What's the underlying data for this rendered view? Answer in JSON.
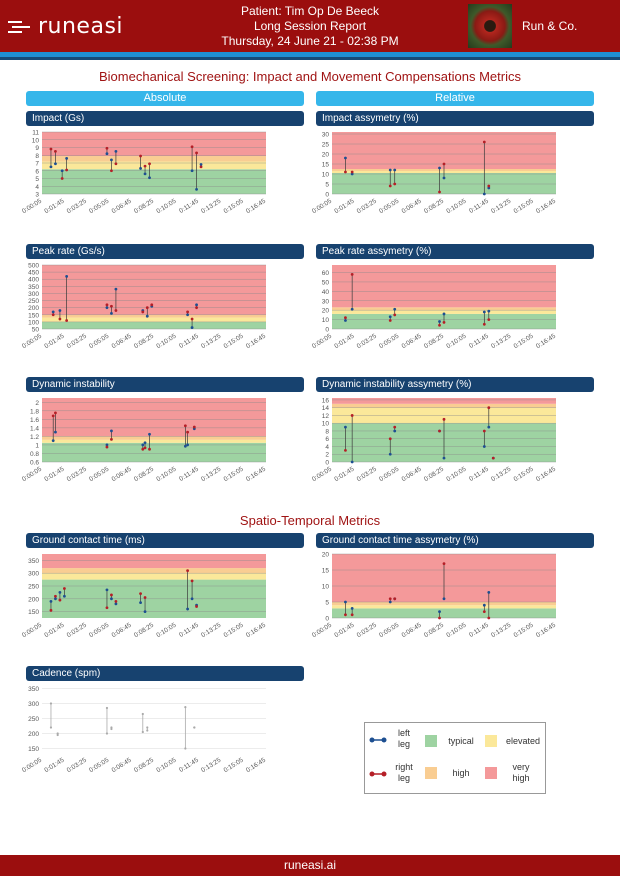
{
  "header": {
    "brand": "runeasi",
    "patient": "Patient: Tim Op De Beeck",
    "report": "Long Session Report",
    "datetime": "Thursday, 24 June 21 - 02:38 PM",
    "company": "Run & Co."
  },
  "sections": {
    "biomech": "Biomechanical Screening: Impact and Movement Compensations Metrics",
    "spatio": "Spatio-Temporal Metrics"
  },
  "columns": {
    "absolute": "Absolute",
    "relative": "Relative"
  },
  "charts": {
    "impact": {
      "title": "Impact (Gs)"
    },
    "impact_asym": {
      "title": "Impact assymetry (%)"
    },
    "peak": {
      "title": "Peak rate (Gs/s)"
    },
    "peak_asym": {
      "title": "Peak rate assymetry (%)"
    },
    "dyn": {
      "title": "Dynamic instability"
    },
    "dyn_asym": {
      "title": "Dynamic instability assymetry (%)"
    },
    "gct": {
      "title": "Ground contact time (ms)"
    },
    "gct_asym": {
      "title": "Ground contact time assymetry (%)"
    },
    "cad": {
      "title": "Cadence (spm)"
    }
  },
  "legend": {
    "left": "left leg",
    "right": "right leg",
    "typical": "typical",
    "elevated": "elevated",
    "high": "high",
    "very_high": "very high"
  },
  "colors": {
    "typical": "#9ed3a2",
    "elevated": "#fbe89a",
    "high": "#f9cd92",
    "very_high": "#f4999a",
    "left": "#1d4f91",
    "right": "#b51f27",
    "stem": "#3a3a3a",
    "cadence": "#aaaaaa",
    "header": "#9b0e0e",
    "accent": "#35b6ea",
    "navy": "#17426f"
  },
  "footer": {
    "url": "runeasi.ai"
  },
  "chart_data": [
    {
      "id": "impact",
      "type": "scatter",
      "title": "Impact (Gs)",
      "x": [
        "0:00:05",
        "0:01:45",
        "0:03:25",
        "0:05:05",
        "0:06:45",
        "0:08:25",
        "0:10:05",
        "0:11:45",
        "0:13:25",
        "0:15:05",
        "0:16:45"
      ],
      "ylim": [
        3,
        11
      ],
      "yticks": [
        3,
        4,
        5,
        6,
        7,
        8,
        9,
        10,
        11
      ],
      "zones": [
        {
          "from": 3,
          "to": 6.2,
          "level": "typical"
        },
        {
          "from": 6.2,
          "to": 7.2,
          "level": "elevated"
        },
        {
          "from": 7.2,
          "to": 7.9,
          "level": "high"
        },
        {
          "from": 7.9,
          "to": 11,
          "level": "very_high"
        }
      ],
      "samples": [
        {
          "t": 0.4,
          "left": 6.5,
          "right": 8.8
        },
        {
          "t": 0.6,
          "left": 6.9,
          "right": 8.5
        },
        {
          "t": 0.9,
          "left": 6.0,
          "right": 5.0
        },
        {
          "t": 1.1,
          "left": 7.6,
          "right": 6.1
        },
        {
          "t": 2.9,
          "left": 8.2,
          "right": 8.9
        },
        {
          "t": 3.1,
          "left": 7.4,
          "right": 6.0
        },
        {
          "t": 3.3,
          "left": 8.5,
          "right": 6.9
        },
        {
          "t": 4.4,
          "left": 6.3,
          "right": 7.9
        },
        {
          "t": 4.6,
          "left": 5.6,
          "right": 6.6
        },
        {
          "t": 4.8,
          "left": 5.1,
          "right": 6.9
        },
        {
          "t": 6.7,
          "left": 6.0,
          "right": 9.1
        },
        {
          "t": 6.9,
          "left": 3.6,
          "right": 8.3
        },
        {
          "t": 7.1,
          "left": 6.8,
          "right": 6.5
        }
      ]
    },
    {
      "id": "impact_asym",
      "type": "scatter",
      "title": "Impact assymetry (%)",
      "x": [
        "0:00:05",
        "0:01:45",
        "0:03:25",
        "0:05:05",
        "0:06:45",
        "0:08:25",
        "0:10:05",
        "0:11:45",
        "0:13:25",
        "0:15:05",
        "0:16:45"
      ],
      "ylim": [
        0,
        31
      ],
      "yticks": [
        0,
        5,
        10,
        15,
        20,
        25,
        30
      ],
      "zones": [
        {
          "from": 0,
          "to": 10.5,
          "level": "typical"
        },
        {
          "from": 10.5,
          "to": 11.5,
          "level": "elevated"
        },
        {
          "from": 11.5,
          "to": 12.5,
          "level": "high"
        },
        {
          "from": 12.5,
          "to": 31,
          "level": "very_high"
        }
      ],
      "samples": [
        {
          "t": 0.6,
          "left": 18,
          "right": 11
        },
        {
          "t": 0.9,
          "left": 10,
          "right": 11
        },
        {
          "t": 2.6,
          "left": 12,
          "right": 4
        },
        {
          "t": 2.8,
          "left": 12,
          "right": 5
        },
        {
          "t": 4.8,
          "left": 13,
          "right": 1
        },
        {
          "t": 5.0,
          "left": 8,
          "right": 15
        },
        {
          "t": 6.8,
          "left": 0,
          "right": 26
        },
        {
          "t": 7.0,
          "left": 3,
          "right": 4
        }
      ]
    },
    {
      "id": "peak",
      "type": "scatter",
      "title": "Peak rate (Gs/s)",
      "x": [
        "0:00:05",
        "0:01:45",
        "0:03:25",
        "0:05:05",
        "0:06:45",
        "0:08:25",
        "0:10:05",
        "0:11:45",
        "0:13:25",
        "0:15:05",
        "0:16:45"
      ],
      "ylim": [
        50,
        500
      ],
      "yticks": [
        50,
        100,
        150,
        200,
        250,
        300,
        350,
        400,
        450,
        500
      ],
      "zones": [
        {
          "from": 50,
          "to": 100,
          "level": "typical"
        },
        {
          "from": 100,
          "to": 130,
          "level": "elevated"
        },
        {
          "from": 130,
          "to": 150,
          "level": "high"
        },
        {
          "from": 150,
          "to": 500,
          "level": "very_high"
        }
      ],
      "samples": [
        {
          "t": 0.5,
          "left": 170,
          "right": 150
        },
        {
          "t": 0.8,
          "left": 180,
          "right": 120
        },
        {
          "t": 1.1,
          "left": 420,
          "right": 110
        },
        {
          "t": 2.9,
          "left": 200,
          "right": 220
        },
        {
          "t": 3.1,
          "left": 160,
          "right": 210
        },
        {
          "t": 3.3,
          "left": 330,
          "right": 180
        },
        {
          "t": 4.5,
          "left": 180,
          "right": 170
        },
        {
          "t": 4.7,
          "left": 140,
          "right": 200
        },
        {
          "t": 4.9,
          "left": 210,
          "right": 220
        },
        {
          "t": 6.5,
          "left": 150,
          "right": 170
        },
        {
          "t": 6.7,
          "left": 60,
          "right": 120
        },
        {
          "t": 6.9,
          "left": 220,
          "right": 200
        }
      ]
    },
    {
      "id": "peak_asym",
      "type": "scatter",
      "title": "Peak rate assymetry (%)",
      "x": [
        "0:00:05",
        "0:01:45",
        "0:03:25",
        "0:05:05",
        "0:06:45",
        "0:08:25",
        "0:10:05",
        "0:11:45",
        "0:13:25",
        "0:15:05",
        "0:16:45"
      ],
      "ylim": [
        0,
        68
      ],
      "yticks": [
        0,
        10,
        20,
        30,
        40,
        50,
        60
      ],
      "zones": [
        {
          "from": 0,
          "to": 16,
          "level": "typical"
        },
        {
          "from": 16,
          "to": 20,
          "level": "elevated"
        },
        {
          "from": 20,
          "to": 23,
          "level": "high"
        },
        {
          "from": 23,
          "to": 68,
          "level": "very_high"
        }
      ],
      "samples": [
        {
          "t": 0.6,
          "left": 9,
          "right": 12
        },
        {
          "t": 0.9,
          "left": 21,
          "right": 58
        },
        {
          "t": 2.6,
          "left": 13,
          "right": 9
        },
        {
          "t": 2.8,
          "left": 21,
          "right": 15
        },
        {
          "t": 4.8,
          "left": 8,
          "right": 4
        },
        {
          "t": 5.0,
          "left": 16,
          "right": 7
        },
        {
          "t": 6.8,
          "left": 18,
          "right": 5
        },
        {
          "t": 7.0,
          "left": 19,
          "right": 10
        }
      ]
    },
    {
      "id": "dyn",
      "type": "scatter",
      "title": "Dynamic instability",
      "x": [
        "0:00:05",
        "0:01:45",
        "0:03:25",
        "0:05:05",
        "0:06:45",
        "0:08:25",
        "0:10:05",
        "0:11:45",
        "0:13:25",
        "0:15:05",
        "0:16:45"
      ],
      "ylim": [
        0.6,
        2.1
      ],
      "yticks": [
        0.6,
        0.8,
        1.0,
        1.2,
        1.4,
        1.6,
        1.8,
        2.0
      ],
      "zones": [
        {
          "from": 0.6,
          "to": 1.05,
          "level": "typical"
        },
        {
          "from": 1.05,
          "to": 1.12,
          "level": "elevated"
        },
        {
          "from": 1.12,
          "to": 1.2,
          "level": "high"
        },
        {
          "from": 1.2,
          "to": 2.1,
          "level": "very_high"
        }
      ],
      "samples": [
        {
          "t": 0.5,
          "left": 1.1,
          "right": 1.68
        },
        {
          "t": 0.6,
          "left": 1.3,
          "right": 1.75
        },
        {
          "t": 2.9,
          "left": 1.0,
          "right": 0.95
        },
        {
          "t": 3.1,
          "left": 1.33,
          "right": 1.13
        },
        {
          "t": 4.5,
          "left": 1.0,
          "right": 0.9
        },
        {
          "t": 4.6,
          "left": 1.05,
          "right": 0.93
        },
        {
          "t": 4.8,
          "left": 1.25,
          "right": 0.9
        },
        {
          "t": 6.4,
          "left": 0.97,
          "right": 1.45
        },
        {
          "t": 6.5,
          "left": 1.0,
          "right": 1.3
        },
        {
          "t": 6.8,
          "left": 1.38,
          "right": 1.42
        }
      ]
    },
    {
      "id": "dyn_asym",
      "type": "scatter",
      "title": "Dynamic instability assymetry (%)",
      "x": [
        "0:00:05",
        "0:01:45",
        "0:03:25",
        "0:05:05",
        "0:06:45",
        "0:08:25",
        "0:10:05",
        "0:11:45",
        "0:13:25",
        "0:15:05",
        "0:16:45"
      ],
      "ylim": [
        0,
        16.5
      ],
      "yticks": [
        0,
        2,
        4,
        6,
        8,
        10,
        12,
        14,
        16
      ],
      "zones": [
        {
          "from": 0,
          "to": 10,
          "level": "typical"
        },
        {
          "from": 10,
          "to": 14,
          "level": "elevated"
        },
        {
          "from": 14,
          "to": 15,
          "level": "high"
        },
        {
          "from": 15,
          "to": 16.5,
          "level": "very_high"
        }
      ],
      "samples": [
        {
          "t": 0.6,
          "left": 9,
          "right": 3
        },
        {
          "t": 0.9,
          "left": 0,
          "right": 12
        },
        {
          "t": 2.6,
          "left": 2,
          "right": 6
        },
        {
          "t": 2.8,
          "left": 8,
          "right": 9
        },
        {
          "t": 4.8,
          "left": 8,
          "right": 8
        },
        {
          "t": 5.0,
          "left": 1,
          "right": 11
        },
        {
          "t": 6.8,
          "left": 4,
          "right": 8
        },
        {
          "t": 7.0,
          "left": 9,
          "right": 14
        },
        {
          "t": 7.2,
          "left": 1,
          "right": 1
        }
      ]
    },
    {
      "id": "gct",
      "type": "scatter",
      "title": "Ground contact time (ms)",
      "x": [
        "0:00:05",
        "0:01:45",
        "0:03:25",
        "0:05:05",
        "0:06:45",
        "0:08:25",
        "0:10:05",
        "0:11:45",
        "0:13:25",
        "0:15:05",
        "0:16:45"
      ],
      "ylim": [
        125,
        375
      ],
      "yticks": [
        150,
        200,
        250,
        300,
        350
      ],
      "zones": [
        {
          "from": 125,
          "to": 275,
          "level": "typical"
        },
        {
          "from": 275,
          "to": 300,
          "level": "elevated"
        },
        {
          "from": 300,
          "to": 320,
          "level": "high"
        },
        {
          "from": 320,
          "to": 375,
          "level": "very_high"
        }
      ],
      "samples": [
        {
          "t": 0.4,
          "left": 190,
          "right": 155
        },
        {
          "t": 0.6,
          "left": 200,
          "right": 210
        },
        {
          "t": 0.8,
          "left": 225,
          "right": 195
        },
        {
          "t": 1.0,
          "left": 210,
          "right": 240
        },
        {
          "t": 2.9,
          "left": 235,
          "right": 165
        },
        {
          "t": 3.1,
          "left": 200,
          "right": 215
        },
        {
          "t": 3.3,
          "left": 180,
          "right": 190
        },
        {
          "t": 4.4,
          "left": 185,
          "right": 220
        },
        {
          "t": 4.6,
          "left": 150,
          "right": 205
        },
        {
          "t": 6.5,
          "left": 160,
          "right": 310
        },
        {
          "t": 6.7,
          "left": 200,
          "right": 270
        },
        {
          "t": 6.9,
          "left": 175,
          "right": 170
        }
      ]
    },
    {
      "id": "gct_asym",
      "type": "scatter",
      "title": "Ground contact time assymetry (%)",
      "x": [
        "0:00:05",
        "0:01:45",
        "0:03:25",
        "0:05:05",
        "0:06:45",
        "0:08:25",
        "0:10:05",
        "0:11:45",
        "0:13:25",
        "0:15:05",
        "0:16:45"
      ],
      "ylim": [
        0,
        20
      ],
      "yticks": [
        0,
        5,
        10,
        15,
        20
      ],
      "zones": [
        {
          "from": 0,
          "to": 3,
          "level": "typical"
        },
        {
          "from": 3,
          "to": 4,
          "level": "elevated"
        },
        {
          "from": 4,
          "to": 5,
          "level": "high"
        },
        {
          "from": 5,
          "to": 20,
          "level": "very_high"
        }
      ],
      "samples": [
        {
          "t": 0.6,
          "left": 5,
          "right": 1
        },
        {
          "t": 0.9,
          "left": 3,
          "right": 1
        },
        {
          "t": 2.6,
          "left": 5,
          "right": 6
        },
        {
          "t": 2.8,
          "left": 6,
          "right": 6
        },
        {
          "t": 4.8,
          "left": 2,
          "right": 0
        },
        {
          "t": 5.0,
          "left": 6,
          "right": 17
        },
        {
          "t": 6.8,
          "left": 4,
          "right": 2
        },
        {
          "t": 7.0,
          "left": 8,
          "right": 0
        }
      ]
    },
    {
      "id": "cad",
      "type": "line",
      "title": "Cadence (spm)",
      "x": [
        "0:00:05",
        "0:01:45",
        "0:03:25",
        "0:05:05",
        "0:06:45",
        "0:08:25",
        "0:10:05",
        "0:11:45",
        "0:13:25",
        "0:15:05",
        "0:16:45"
      ],
      "ylim": [
        135,
        355
      ],
      "yticks": [
        150,
        200,
        250,
        300,
        350
      ],
      "segments": [
        [
          0.4,
          300,
          220
        ],
        [
          0.7,
          200,
          195
        ],
        [
          2.9,
          285,
          200
        ],
        [
          3.1,
          220,
          215
        ],
        [
          4.5,
          265,
          205
        ],
        [
          4.7,
          220,
          210
        ],
        [
          6.4,
          288,
          150
        ],
        [
          6.8,
          220,
          220
        ]
      ]
    }
  ]
}
